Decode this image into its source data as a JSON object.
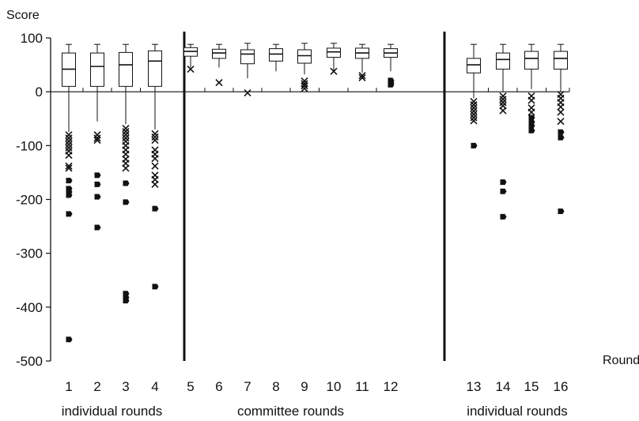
{
  "chart_data": {
    "type": "box",
    "ylabel": "Score",
    "xlabel": "Round",
    "ylim": [
      -500,
      100
    ],
    "yticks": [
      100,
      0,
      -100,
      -200,
      -300,
      -400,
      -500
    ],
    "x_ticks": [
      "1",
      "2",
      "3",
      "4",
      "5",
      "6",
      "7",
      "8",
      "9",
      "10",
      "11",
      "12",
      "13",
      "14",
      "15",
      "16"
    ],
    "groups": [
      {
        "label": "individual rounds",
        "rounds": [
          1,
          2,
          3,
          4
        ]
      },
      {
        "label": "committee rounds",
        "rounds": [
          5,
          6,
          7,
          8,
          9,
          10,
          11,
          12
        ]
      },
      {
        "label": "individual rounds",
        "rounds": [
          13,
          14,
          15,
          16
        ]
      }
    ],
    "separators_after_rounds": [
      4,
      12
    ],
    "grid": false,
    "boxes": [
      {
        "round": 1,
        "whisker_low": -75,
        "q1": 10,
        "median": 42,
        "q3": 72,
        "whisker_high": 88,
        "mild_outliers": [
          -80,
          -86,
          -92,
          -98,
          -104,
          -110,
          -118,
          -138,
          -142
        ],
        "extreme_outliers": [
          -165,
          -180,
          -186,
          -192,
          -227,
          -460
        ]
      },
      {
        "round": 2,
        "whisker_low": -55,
        "q1": 10,
        "median": 47,
        "q3": 72,
        "whisker_high": 88,
        "mild_outliers": [
          -80,
          -86,
          -90
        ],
        "extreme_outliers": [
          -155,
          -172,
          -195,
          -252
        ]
      },
      {
        "round": 3,
        "whisker_low": -60,
        "q1": 10,
        "median": 50,
        "q3": 73,
        "whisker_high": 88,
        "mild_outliers": [
          -68,
          -74,
          -80,
          -86,
          -92,
          -100,
          -108,
          -116,
          -125,
          -133,
          -142
        ],
        "extreme_outliers": [
          -170,
          -205,
          -375,
          -382,
          -388
        ]
      },
      {
        "round": 4,
        "whisker_low": -70,
        "q1": 10,
        "median": 57,
        "q3": 76,
        "whisker_high": 88,
        "mild_outliers": [
          -78,
          -84,
          -90,
          -108,
          -116,
          -124,
          -138,
          -155,
          -163,
          -172
        ],
        "extreme_outliers": [
          -217,
          -362
        ]
      },
      {
        "round": 5,
        "whisker_low": 45,
        "q1": 66,
        "median": 75,
        "q3": 82,
        "whisker_high": 88,
        "mild_outliers": [
          42
        ],
        "extreme_outliers": []
      },
      {
        "round": 6,
        "whisker_low": 45,
        "q1": 62,
        "median": 72,
        "q3": 79,
        "whisker_high": 88,
        "mild_outliers": [
          17
        ],
        "extreme_outliers": []
      },
      {
        "round": 7,
        "whisker_low": 25,
        "q1": 52,
        "median": 70,
        "q3": 78,
        "whisker_high": 90,
        "mild_outliers": [
          -2
        ],
        "extreme_outliers": []
      },
      {
        "round": 8,
        "whisker_low": 38,
        "q1": 57,
        "median": 70,
        "q3": 80,
        "whisker_high": 88,
        "mild_outliers": [],
        "extreme_outliers": []
      },
      {
        "round": 9,
        "whisker_low": 32,
        "q1": 53,
        "median": 67,
        "q3": 78,
        "whisker_high": 90,
        "mild_outliers": [
          6,
          11,
          15,
          20
        ],
        "extreme_outliers": []
      },
      {
        "round": 10,
        "whisker_low": 40,
        "q1": 64,
        "median": 74,
        "q3": 81,
        "whisker_high": 90,
        "mild_outliers": [
          38
        ],
        "extreme_outliers": []
      },
      {
        "round": 11,
        "whisker_low": 35,
        "q1": 62,
        "median": 72,
        "q3": 81,
        "whisker_high": 88,
        "mild_outliers": [
          26,
          30
        ],
        "extreme_outliers": []
      },
      {
        "round": 12,
        "whisker_low": 38,
        "q1": 64,
        "median": 72,
        "q3": 80,
        "whisker_high": 88,
        "mild_outliers": [],
        "extreme_outliers": [
          13,
          17,
          21
        ]
      },
      {
        "round": 13,
        "whisker_low": -12,
        "q1": 35,
        "median": 50,
        "q3": 62,
        "whisker_high": 88,
        "mild_outliers": [
          -18,
          -24,
          -30,
          -36,
          -42,
          -48,
          -54
        ],
        "extreme_outliers": [
          -100
        ]
      },
      {
        "round": 14,
        "whisker_low": 0,
        "q1": 42,
        "median": 60,
        "q3": 72,
        "whisker_high": 88,
        "mild_outliers": [
          -8,
          -14,
          -20,
          -26,
          -35
        ],
        "extreme_outliers": [
          -168,
          -185,
          -232
        ]
      },
      {
        "round": 15,
        "whisker_low": 5,
        "q1": 42,
        "median": 62,
        "q3": 75,
        "whisker_high": 88,
        "mild_outliers": [
          -8,
          -16,
          -30,
          -38
        ],
        "extreme_outliers": [
          -48,
          -56,
          -63,
          -72
        ]
      },
      {
        "round": 16,
        "whisker_low": 0,
        "q1": 42,
        "median": 62,
        "q3": 75,
        "whisker_high": 88,
        "mild_outliers": [
          -5,
          -12,
          -20,
          -28,
          -38,
          -55
        ],
        "extreme_outliers": [
          -75,
          -85,
          -222
        ]
      }
    ]
  }
}
